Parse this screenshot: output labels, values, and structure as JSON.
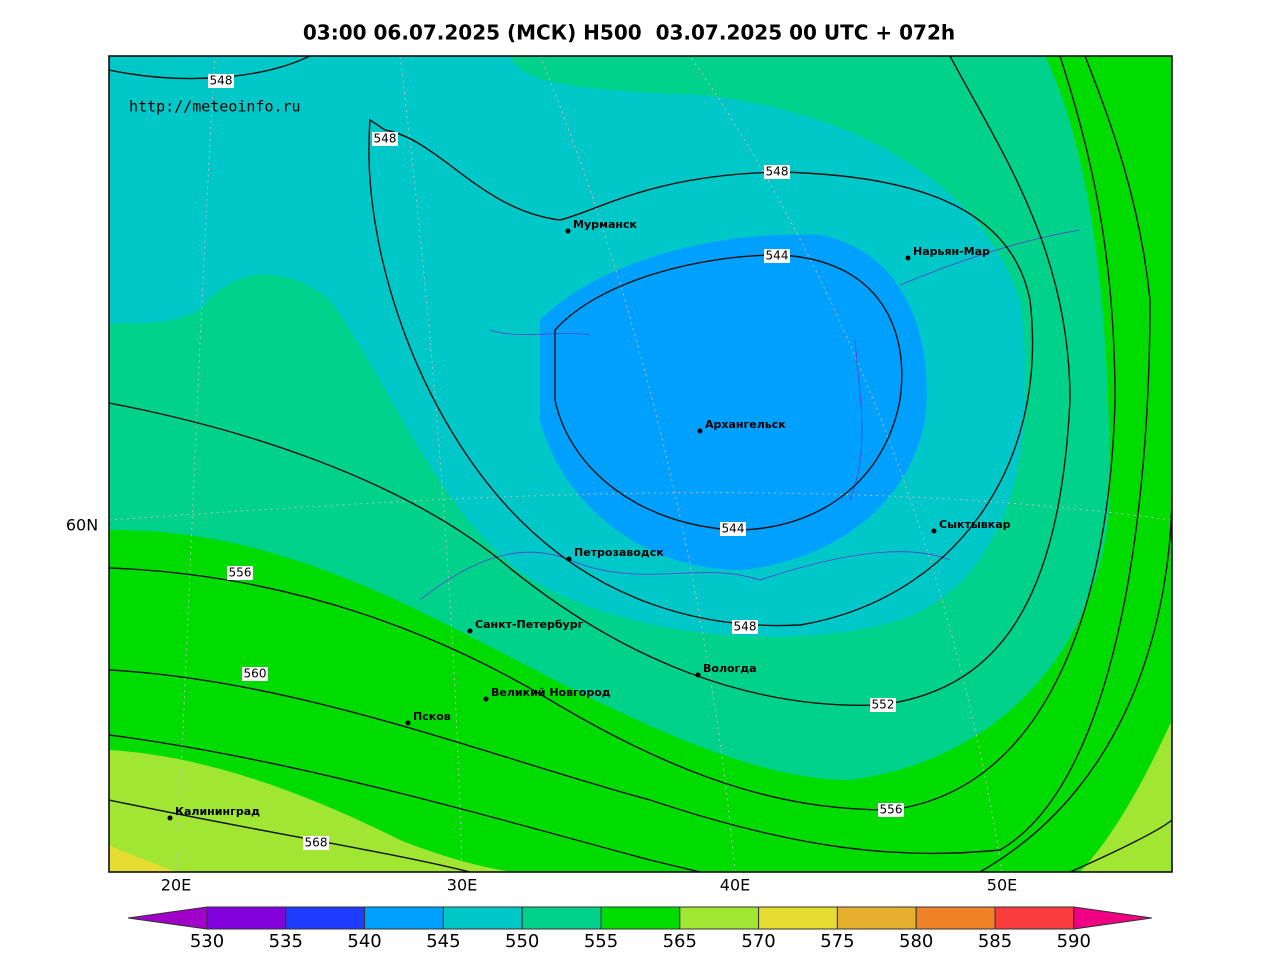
{
  "title": "03:00 06.07.2025 (МСК) H500  03.07.2025 00 UTC + 072h",
  "source": "http://meteoinfo.ru",
  "lon_labels": [
    "20E",
    "30E",
    "40E",
    "50E"
  ],
  "lat_labels": [
    "60N"
  ],
  "cities": [
    "Мурманск",
    "Нарьян-Мар",
    "Архангельск",
    "Сыктывкар",
    "Петрозаводск",
    "Санкт-Петербург",
    "Вологда",
    "Великий Новгород",
    "Псков",
    "Калининград"
  ],
  "contour_labels": [
    548,
    548,
    548,
    544,
    544,
    548,
    552,
    556,
    560,
    556,
    568
  ],
  "colorbar": {
    "levels": [
      530,
      535,
      540,
      545,
      550,
      555,
      565,
      570,
      575,
      580,
      585,
      590
    ],
    "colors": [
      "#a000c8",
      "#8200dc",
      "#1e3cff",
      "#00a0ff",
      "#00c8c8",
      "#00d28c",
      "#00dc00",
      "#a0e632",
      "#e6dc32",
      "#e6af2d",
      "#f08228",
      "#fa3c3c",
      "#f00082"
    ]
  }
}
